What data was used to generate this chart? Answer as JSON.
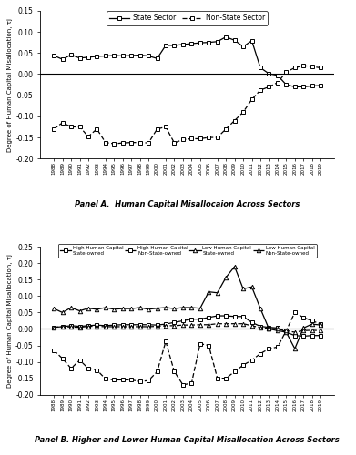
{
  "years": [
    1988,
    1989,
    1990,
    1991,
    1992,
    1993,
    1994,
    1995,
    1996,
    1997,
    1998,
    1999,
    2000,
    2001,
    2002,
    2003,
    2004,
    2005,
    2006,
    2007,
    2008,
    2009,
    2010,
    2011,
    2012,
    2013,
    2014,
    2015,
    2016,
    2017,
    2018,
    2019
  ],
  "panelA_state": [
    0.044,
    0.035,
    0.046,
    0.038,
    0.04,
    0.042,
    0.043,
    0.044,
    0.043,
    0.044,
    0.045,
    0.043,
    0.037,
    0.068,
    0.068,
    0.07,
    0.072,
    0.074,
    0.075,
    0.077,
    0.088,
    0.08,
    0.065,
    0.079,
    0.015,
    0.001,
    -0.003,
    -0.025,
    -0.03,
    -0.03,
    -0.028,
    -0.027
  ],
  "panelA_nonstate": [
    -0.13,
    -0.115,
    -0.125,
    -0.125,
    -0.148,
    -0.13,
    -0.162,
    -0.165,
    -0.163,
    -0.162,
    -0.162,
    -0.163,
    -0.13,
    -0.125,
    -0.163,
    -0.155,
    -0.153,
    -0.153,
    -0.15,
    -0.15,
    -0.13,
    -0.11,
    -0.09,
    -0.06,
    -0.038,
    -0.03,
    -0.02,
    0.005,
    0.015,
    0.02,
    0.018,
    0.015
  ],
  "panelB_high_state": [
    0.005,
    0.007,
    0.01,
    0.008,
    0.01,
    0.012,
    0.01,
    0.012,
    0.013,
    0.013,
    0.013,
    0.013,
    0.012,
    0.015,
    0.02,
    0.025,
    0.03,
    0.03,
    0.035,
    0.04,
    0.04,
    0.038,
    0.038,
    0.02,
    0.008,
    0.005,
    0.003,
    -0.01,
    -0.02,
    -0.022,
    -0.02,
    -0.02
  ],
  "panelB_high_nonstate": [
    -0.065,
    -0.09,
    -0.12,
    -0.095,
    -0.12,
    -0.125,
    -0.152,
    -0.155,
    -0.155,
    -0.155,
    -0.16,
    -0.157,
    -0.13,
    -0.038,
    -0.13,
    -0.17,
    -0.165,
    -0.045,
    -0.05,
    -0.15,
    -0.15,
    -0.13,
    -0.11,
    -0.095,
    -0.075,
    -0.06,
    -0.055,
    -0.005,
    0.05,
    0.035,
    0.025,
    0.015
  ],
  "panelB_low_state": [
    0.062,
    0.05,
    0.065,
    0.055,
    0.063,
    0.06,
    0.065,
    0.06,
    0.062,
    0.062,
    0.065,
    0.06,
    0.063,
    0.065,
    0.062,
    0.065,
    0.065,
    0.063,
    0.113,
    0.11,
    0.157,
    0.19,
    0.122,
    0.128,
    0.062,
    0.0,
    -0.005,
    -0.01,
    -0.06,
    0.003,
    0.015,
    0.012
  ],
  "panelB_low_nonstate": [
    0.005,
    0.007,
    0.006,
    0.005,
    0.008,
    0.008,
    0.007,
    0.007,
    0.007,
    0.007,
    0.007,
    0.007,
    0.008,
    0.01,
    0.01,
    0.012,
    0.012,
    0.013,
    0.013,
    0.016,
    0.016,
    0.016,
    0.016,
    0.01,
    0.004,
    0.002,
    0.0,
    -0.005,
    -0.01,
    -0.005,
    -0.004,
    -0.005
  ],
  "panelA_title": "Panel A.  Human Capital Misallocaion Across Sectors",
  "panelB_title": "Panel B. Higher and Lower Human Capital Misallocation Across Sectors",
  "ylabel": "Degree of Human Capital Misallocation, τj",
  "legend_A_1": "State Sector",
  "legend_A_2": "Non-State Sector",
  "legend_B_1a": "High Human Capital",
  "legend_B_1b": "State-owned",
  "legend_B_2a": "High Human Capital",
  "legend_B_2b": "Non-State-owned",
  "legend_B_3a": "Low Human Capital",
  "legend_B_3b": "State-owned",
  "legend_B_4a": "Low Human Capital",
  "legend_B_4b": "Non-State-owned",
  "bg_color": "#ffffff",
  "line_color": "#000000"
}
